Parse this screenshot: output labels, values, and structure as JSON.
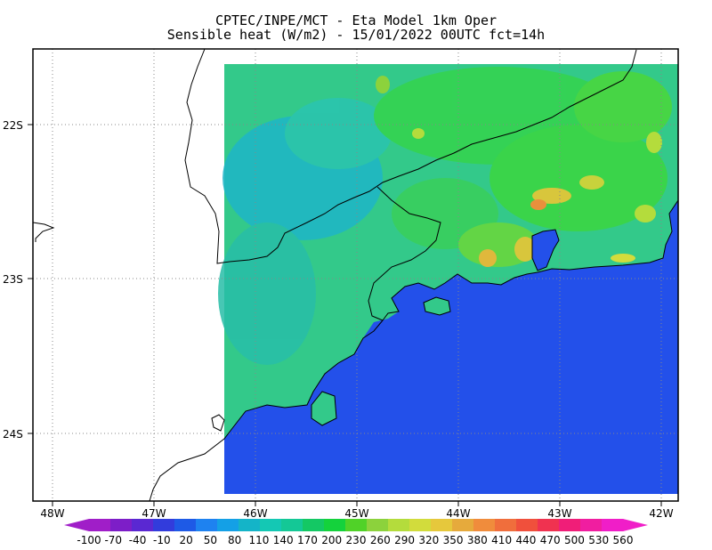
{
  "title": {
    "line1": "CPTEC/INPE/MCT -  Eta Model 1km Oper",
    "line2": "Sensible heat (W/m2) - 15/01/2022 00UTC fct=14h"
  },
  "axes": {
    "lat_labels": [
      "22S",
      "23S",
      "24S"
    ],
    "lon_labels": [
      "48W",
      "47W",
      "46W",
      "45W",
      "44W",
      "43W",
      "42W"
    ]
  },
  "colorbar": {
    "labels": [
      "-100",
      "-70",
      "-40",
      "-10",
      "20",
      "50",
      "80",
      "110",
      "140",
      "170",
      "200",
      "230",
      "260",
      "290",
      "320",
      "350",
      "380",
      "410",
      "440",
      "470",
      "500",
      "530",
      "560"
    ],
    "colors": [
      "#a01ec8",
      "#7d1ec8",
      "#5a28d2",
      "#323cdc",
      "#1e5ae6",
      "#1e82f0",
      "#14a0e6",
      "#14b4c8",
      "#14c8b4",
      "#14c896",
      "#14c864",
      "#14d23c",
      "#50d228",
      "#8cd23c",
      "#b4dc3c",
      "#d2dc3c",
      "#e6c83c",
      "#e6aa3c",
      "#f08c3c",
      "#f06e3c",
      "#f0503c",
      "#f03250",
      "#f01e78",
      "#f01ea0",
      "#f01ec8"
    ]
  },
  "legend_colors": {
    "ocean": "#2350ea",
    "land_base": "#33c98a",
    "land_low": "#1fb6c8",
    "land_high": "#35d44c",
    "hot_spots": "#d8c63c",
    "max_spots": "#e8903c"
  }
}
